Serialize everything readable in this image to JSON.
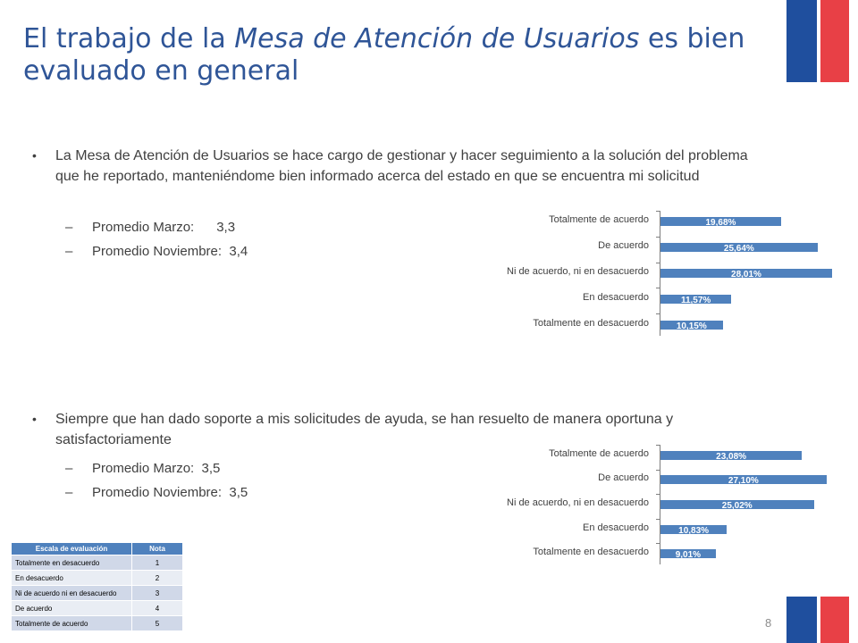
{
  "slide": {
    "title_part1": "El trabajo de la ",
    "title_italic": "Mesa de Atención de Usuarios",
    "title_part2": " es bien evaluado en general",
    "page_number": "8"
  },
  "colors": {
    "title": "#2F5597",
    "bar": "#4F81BD",
    "flag_blue": "#1F4F9E",
    "flag_red": "#E84046"
  },
  "section1": {
    "bullet_marker": "•",
    "text": "La Mesa de Atención de Usuarios se hace cargo de gestionar y hacer seguimiento a la solución del problema que he reportado, manteniéndome bien informado acerca del estado en que se encuentra mi solicitud",
    "items": [
      {
        "dash": "–",
        "text": "Promedio Marzo:      3,3"
      },
      {
        "dash": "–",
        "text": "Promedio Noviembre:  3,4"
      }
    ]
  },
  "section2": {
    "bullet_marker": "•",
    "text": "Siempre que han dado soporte a mis solicitudes de ayuda, se han resuelto de manera oportuna y satisfactoriamente",
    "items": [
      {
        "dash": "–",
        "text": "Promedio Marzo:  3,5"
      },
      {
        "dash": "–",
        "text": "Promedio Noviembre:  3,5"
      }
    ]
  },
  "chart_data": [
    {
      "type": "bar",
      "orientation": "horizontal",
      "categories": [
        "Totalmente de acuerdo",
        "De acuerdo",
        "Ni de acuerdo, ni en desacuerdo",
        "En desacuerdo",
        "Totalmente en desacuerdo"
      ],
      "values": [
        19.68,
        25.64,
        28.01,
        11.57,
        10.15
      ],
      "labels": [
        "19,68%",
        "25,64%",
        "28,01%",
        "11,57%",
        "10,15%"
      ],
      "xlim": [
        0,
        28.01
      ]
    },
    {
      "type": "bar",
      "orientation": "horizontal",
      "categories": [
        "Totalmente de acuerdo",
        "De acuerdo",
        "Ni de acuerdo, ni en desacuerdo",
        "En desacuerdo",
        "Totalmente en desacuerdo"
      ],
      "values": [
        23.08,
        27.1,
        25.02,
        10.83,
        9.01
      ],
      "labels": [
        "23,08%",
        "27,10%",
        "25,02%",
        "10,83%",
        "9,01%"
      ],
      "xlim": [
        0,
        28.01
      ]
    }
  ],
  "scale_table": {
    "headers": [
      "Escala de evaluación",
      "Nota"
    ],
    "rows": [
      [
        "Totalmente en desacuerdo",
        "1"
      ],
      [
        "En desacuerdo",
        "2"
      ],
      [
        "Ni de acuerdo ni en desacuerdo",
        "3"
      ],
      [
        "De acuerdo",
        "4"
      ],
      [
        "Totalmente de acuerdo",
        "5"
      ]
    ]
  }
}
